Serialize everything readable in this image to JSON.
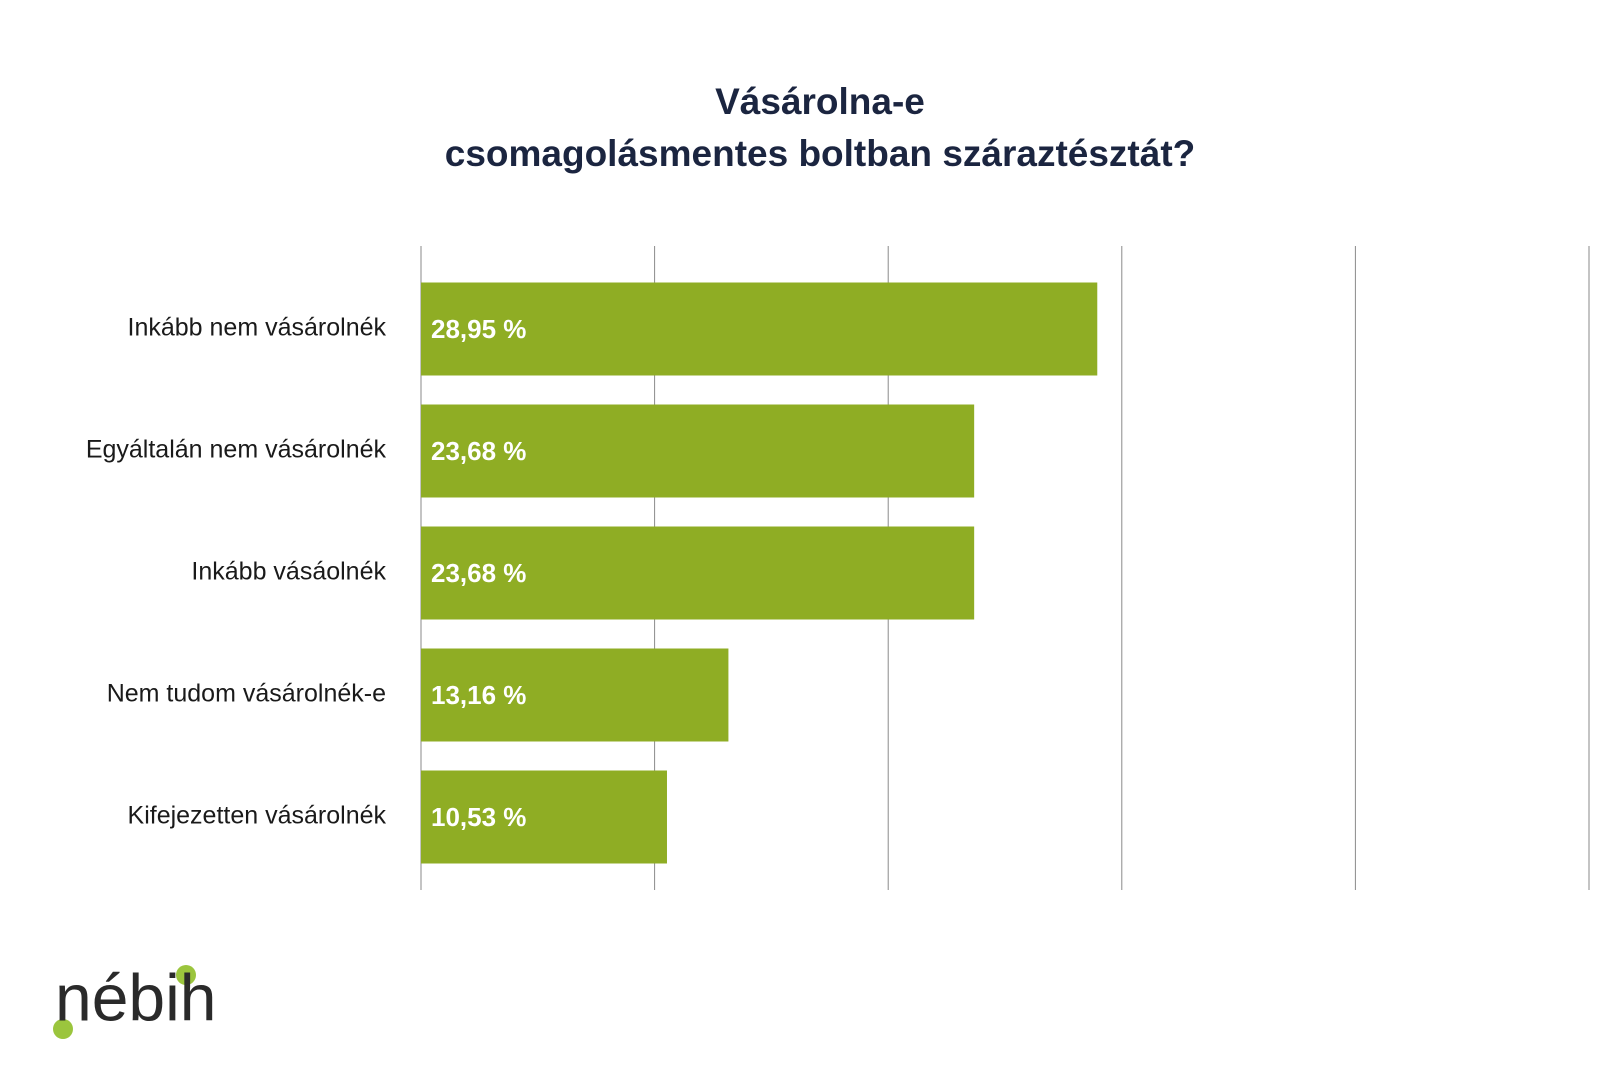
{
  "chart_data": {
    "type": "bar",
    "orientation": "horizontal",
    "title": [
      "Vásárolna-e",
      "csomagolásmentes boltban száraztésztát?"
    ],
    "categories": [
      "Inkább nem vásárolnék",
      "Egyáltalán nem vásárolnék",
      "Inkább vásáolnék",
      "Nem tudom vásárolnék-e",
      "Kifejezetten vásárolnék"
    ],
    "values": [
      28.95,
      23.68,
      23.68,
      13.16,
      10.53
    ],
    "value_labels": [
      "28,95 %",
      "23,68 %",
      "23,68 %",
      "13,16 %",
      "10,53 %"
    ],
    "color": "#8fad24",
    "xlim": [
      0,
      50
    ],
    "xticks": [
      0,
      10,
      20,
      30,
      40,
      50
    ],
    "grid": true
  },
  "logo": "nébih"
}
